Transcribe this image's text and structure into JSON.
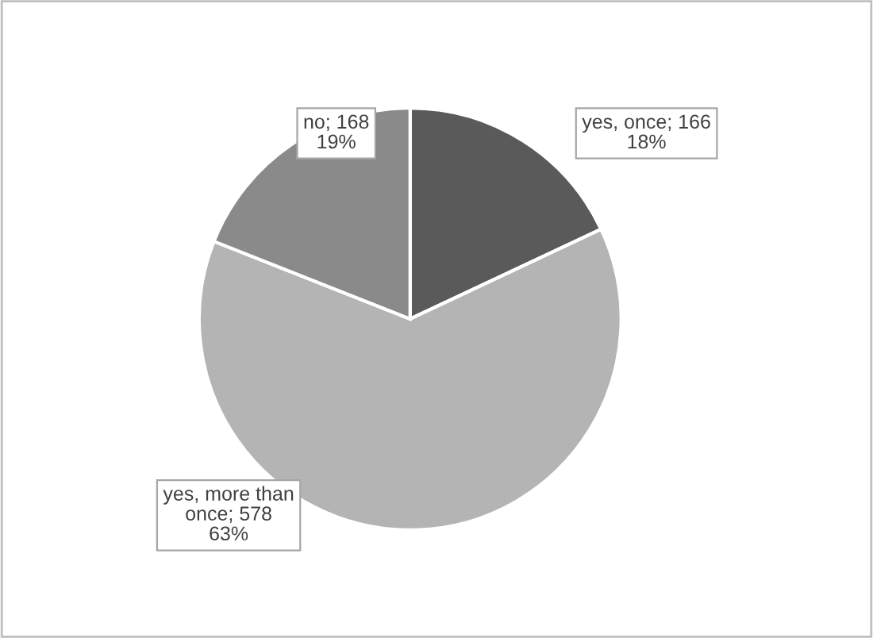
{
  "chart_data": {
    "type": "pie",
    "categories": [
      "yes, once; 166",
      "yes, more than once; 578",
      "no; 168"
    ],
    "values": [
      18,
      63,
      19
    ],
    "colors": [
      "#5a5a5a",
      "#b4b4b4",
      "#8a8a8a"
    ],
    "value_labels": [
      "18%",
      "63%",
      "19%"
    ],
    "legend": false
  }
}
